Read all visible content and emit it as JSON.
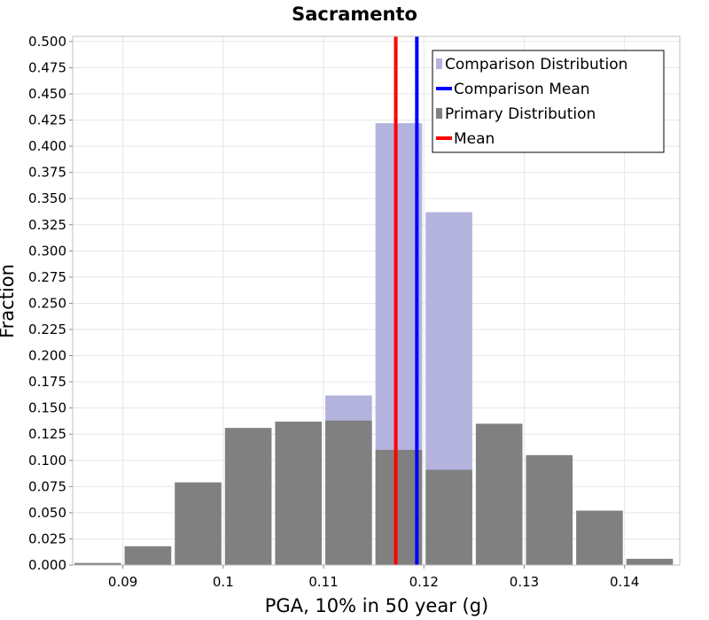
{
  "chart_data": {
    "type": "bar",
    "title": "Sacramento",
    "xlabel": "PGA, 10% in 50 year (g)",
    "ylabel": "Fraction",
    "xlim": [
      0.085,
      0.1455
    ],
    "ylim": [
      0,
      0.505
    ],
    "bin_width": 0.005,
    "x_ticks": [
      {
        "value": 0.09,
        "label": "0.09"
      },
      {
        "value": 0.1,
        "label": "0.1"
      },
      {
        "value": 0.11,
        "label": "0.11"
      },
      {
        "value": 0.12,
        "label": "0.12"
      },
      {
        "value": 0.13,
        "label": "0.13"
      },
      {
        "value": 0.14,
        "label": "0.14"
      }
    ],
    "y_ticks": [
      "0.000",
      "0.025",
      "0.050",
      "0.075",
      "0.100",
      "0.125",
      "0.150",
      "0.175",
      "0.200",
      "0.225",
      "0.250",
      "0.275",
      "0.300",
      "0.325",
      "0.350",
      "0.375",
      "0.400",
      "0.425",
      "0.450",
      "0.475",
      "0.500"
    ],
    "grid": true,
    "legend_position": "top-right",
    "series": [
      {
        "name": "Comparison Distribution",
        "kind": "histogram",
        "color": "#b3b3de",
        "bins": [
          {
            "x": 0.1125,
            "value": 0.162
          },
          {
            "x": 0.1175,
            "value": 0.422
          },
          {
            "x": 0.1225,
            "value": 0.337
          }
        ]
      },
      {
        "name": "Primary Distribution",
        "kind": "histogram",
        "color": "#808080",
        "bins": [
          {
            "x": 0.0875,
            "value": 0.002
          },
          {
            "x": 0.0925,
            "value": 0.018
          },
          {
            "x": 0.0975,
            "value": 0.079
          },
          {
            "x": 0.1025,
            "value": 0.131
          },
          {
            "x": 0.1075,
            "value": 0.137
          },
          {
            "x": 0.1125,
            "value": 0.138
          },
          {
            "x": 0.1175,
            "value": 0.11
          },
          {
            "x": 0.1225,
            "value": 0.091
          },
          {
            "x": 0.1275,
            "value": 0.135
          },
          {
            "x": 0.1325,
            "value": 0.105
          },
          {
            "x": 0.1375,
            "value": 0.052
          },
          {
            "x": 0.1425,
            "value": 0.006
          }
        ]
      },
      {
        "name": "Comparison Mean",
        "kind": "vline",
        "color": "#0000ff",
        "x": 0.1193
      },
      {
        "name": "Mean",
        "kind": "vline",
        "color": "#ff0000",
        "x": 0.1172
      }
    ],
    "legend": [
      {
        "label": "Comparison Distribution",
        "symbol": "box",
        "color": "#b3b3de"
      },
      {
        "label": "Comparison Mean",
        "symbol": "line",
        "color": "#0000ff"
      },
      {
        "label": "Primary Distribution",
        "symbol": "box",
        "color": "#808080"
      },
      {
        "label": "Mean",
        "symbol": "line",
        "color": "#ff0000"
      }
    ]
  }
}
